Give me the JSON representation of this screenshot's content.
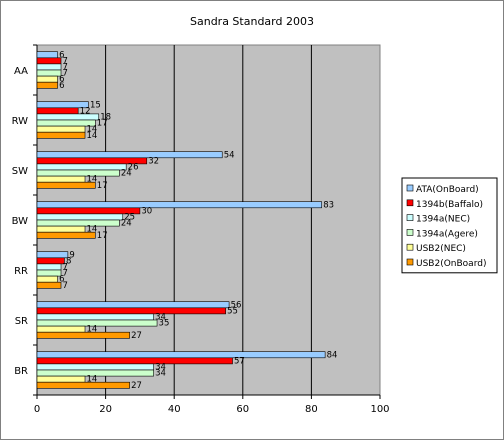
{
  "chart_data": {
    "type": "bar",
    "orientation": "horizontal",
    "title": "Sandra Standard 2003",
    "xlabel": "",
    "ylabel": "",
    "xlim": [
      0,
      100
    ],
    "x_ticks": [
      "0",
      "20",
      "40",
      "60",
      "80",
      "100"
    ],
    "grid": "vertical major",
    "legend_position": "right",
    "categories": [
      "AA",
      "RW",
      "SW",
      "BW",
      "RR",
      "SR",
      "BR"
    ],
    "series": [
      {
        "name": "ATA(OnBoard)",
        "color": "#99ccff",
        "values": [
          6,
          15,
          54,
          83,
          9,
          56,
          84
        ]
      },
      {
        "name": "1394b(Baffalo)",
        "color": "#ff0000",
        "values": [
          7,
          12,
          32,
          30,
          8,
          55,
          57
        ]
      },
      {
        "name": "1394a(NEC)",
        "color": "#ccffff",
        "values": [
          7,
          18,
          26,
          25,
          7,
          34,
          34
        ]
      },
      {
        "name": "1394a(Agere)",
        "color": "#ccffcc",
        "values": [
          7,
          17,
          24,
          24,
          7,
          35,
          34
        ]
      },
      {
        "name": "USB2(NEC)",
        "color": "#ffff99",
        "values": [
          6,
          14,
          14,
          14,
          6,
          14,
          14
        ]
      },
      {
        "name": "USB2(OnBoard)",
        "color": "#ff9900",
        "values": [
          6,
          14,
          17,
          17,
          7,
          27,
          27
        ]
      }
    ]
  },
  "colors": {
    "plot_background": "#c0c0c0",
    "gridline": "#000000",
    "bar_outline": "#000000"
  }
}
